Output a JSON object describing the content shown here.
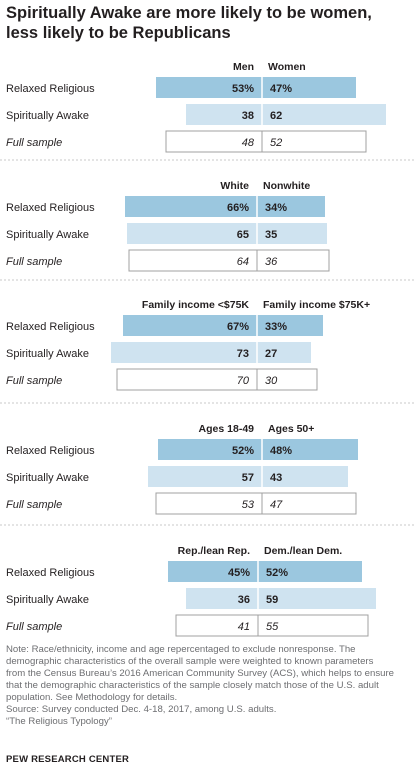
{
  "title": "Spiritually Awake are more likely to be women, less likely to be Republicans",
  "colors": {
    "relaxed_religious": "#9bc7df",
    "spiritually_awake": "#cfe3f0",
    "full_sample_fill": "#ffffff",
    "full_sample_border": "#a0a0a0",
    "divider": "#c8c8c8"
  },
  "chart_data": [
    {
      "type": "bar",
      "subtype": "diverging-percent-split",
      "categories": [
        "Relaxed Religious",
        "Spiritually Awake",
        "Full sample"
      ],
      "series": [
        {
          "name": "Men",
          "values": [
            53,
            38,
            48
          ],
          "labels": [
            "53%",
            "38",
            "48"
          ]
        },
        {
          "name": "Women",
          "values": [
            47,
            62,
            52
          ],
          "labels": [
            "47%",
            "62",
            "52"
          ]
        }
      ],
      "unit": "%"
    },
    {
      "type": "bar",
      "subtype": "diverging-percent-split",
      "categories": [
        "Relaxed Religious",
        "Spiritually Awake",
        "Full sample"
      ],
      "series": [
        {
          "name": "White",
          "values": [
            66,
            65,
            64
          ],
          "labels": [
            "66%",
            "65",
            "64"
          ]
        },
        {
          "name": "Nonwhite",
          "values": [
            34,
            35,
            36
          ],
          "labels": [
            "34%",
            "35",
            "36"
          ]
        }
      ],
      "unit": "%"
    },
    {
      "type": "bar",
      "subtype": "diverging-percent-split",
      "categories": [
        "Relaxed Religious",
        "Spiritually Awake",
        "Full sample"
      ],
      "series": [
        {
          "name": "Family income <$75K",
          "values": [
            67,
            73,
            70
          ],
          "labels": [
            "67%",
            "73",
            "70"
          ]
        },
        {
          "name": "Family income $75K+",
          "values": [
            33,
            27,
            30
          ],
          "labels": [
            "33%",
            "27",
            "30"
          ]
        }
      ],
      "unit": "%"
    },
    {
      "type": "bar",
      "subtype": "diverging-percent-split",
      "categories": [
        "Relaxed Religious",
        "Spiritually Awake",
        "Full sample"
      ],
      "series": [
        {
          "name": "Ages 18-49",
          "values": [
            52,
            57,
            53
          ],
          "labels": [
            "52%",
            "57",
            "53"
          ]
        },
        {
          "name": "Ages 50+",
          "values": [
            48,
            43,
            47
          ],
          "labels": [
            "48%",
            "43",
            "47"
          ]
        }
      ],
      "unit": "%"
    },
    {
      "type": "bar",
      "subtype": "diverging-percent-split",
      "categories": [
        "Relaxed Religious",
        "Spiritually Awake",
        "Full sample"
      ],
      "series": [
        {
          "name": "Rep./lean Rep.",
          "values": [
            45,
            36,
            41
          ],
          "labels": [
            "45%",
            "36",
            "41"
          ]
        },
        {
          "name": "Dem./lean Dem.",
          "values": [
            52,
            59,
            55
          ],
          "labels": [
            "52%",
            "59",
            "55"
          ]
        }
      ],
      "unit": "%"
    }
  ],
  "note": {
    "lines": [
      "Note: Race/ethnicity, income and age repercentaged to exclude nonresponse. The",
      "demographic characteristics of the overall sample were weighted to known parameters",
      "from the Census Bureau’s 2016 American Community Survey (ACS), which helps to ensure",
      "that the demographic characteristics of the sample closely match those of the U.S. adult",
      "population. See Methodology for details.",
      "Source: Survey conducted Dec. 4-18, 2017, among U.S. adults.",
      "“The Religious Typology”"
    ]
  },
  "footer": "PEW RESEARCH CENTER"
}
